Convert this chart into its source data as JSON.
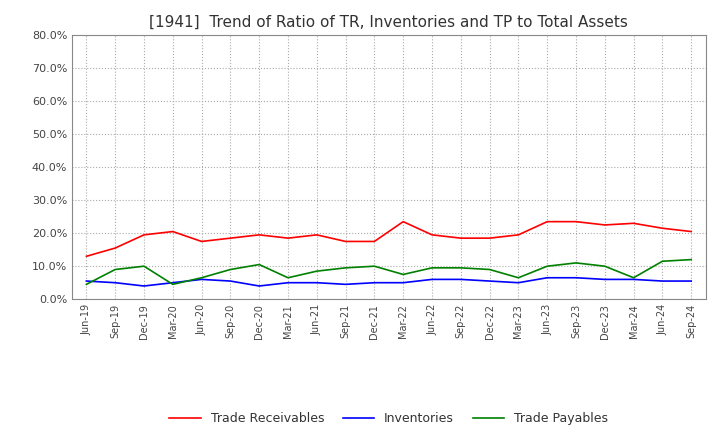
{
  "title": "[1941]  Trend of Ratio of TR, Inventories and TP to Total Assets",
  "x_labels": [
    "Jun-19",
    "Sep-19",
    "Dec-19",
    "Mar-20",
    "Jun-20",
    "Sep-20",
    "Dec-20",
    "Mar-21",
    "Jun-21",
    "Sep-21",
    "Dec-21",
    "Mar-22",
    "Jun-22",
    "Sep-22",
    "Dec-22",
    "Mar-23",
    "Jun-23",
    "Sep-23",
    "Dec-23",
    "Mar-24",
    "Jun-24",
    "Sep-24"
  ],
  "trade_receivables": [
    0.13,
    0.155,
    0.195,
    0.205,
    0.175,
    0.185,
    0.195,
    0.185,
    0.195,
    0.175,
    0.175,
    0.235,
    0.195,
    0.185,
    0.185,
    0.195,
    0.235,
    0.235,
    0.225,
    0.23,
    0.215,
    0.205
  ],
  "inventories": [
    0.055,
    0.05,
    0.04,
    0.05,
    0.06,
    0.055,
    0.04,
    0.05,
    0.05,
    0.045,
    0.05,
    0.05,
    0.06,
    0.06,
    0.055,
    0.05,
    0.065,
    0.065,
    0.06,
    0.06,
    0.055,
    0.055
  ],
  "trade_payables": [
    0.045,
    0.09,
    0.1,
    0.045,
    0.065,
    0.09,
    0.105,
    0.065,
    0.085,
    0.095,
    0.1,
    0.075,
    0.095,
    0.095,
    0.09,
    0.065,
    0.1,
    0.11,
    0.1,
    0.065,
    0.115,
    0.12
  ],
  "tr_color": "#ff0000",
  "inv_color": "#0000ff",
  "tp_color": "#008000",
  "ylim": [
    0.0,
    0.8
  ],
  "yticks": [
    0.0,
    0.1,
    0.2,
    0.3,
    0.4,
    0.5,
    0.6,
    0.7,
    0.8
  ],
  "background_color": "#ffffff",
  "grid_color": "#aaaaaa",
  "title_fontsize": 11,
  "legend_labels": [
    "Trade Receivables",
    "Inventories",
    "Trade Payables"
  ]
}
